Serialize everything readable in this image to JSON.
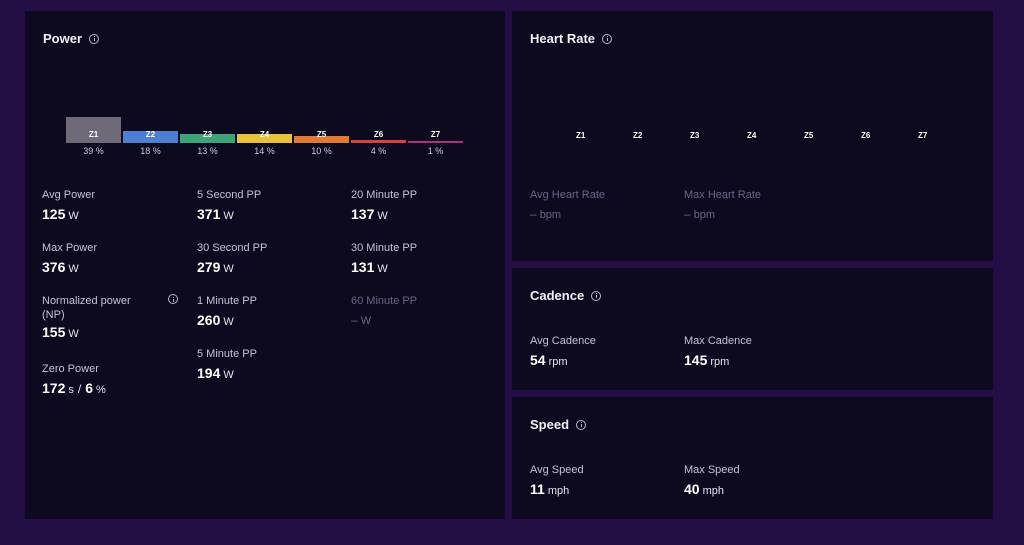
{
  "power": {
    "title": "Power",
    "zones": [
      {
        "label": "Z1",
        "pct": "39 %",
        "value": 39,
        "color": "#6e6a78"
      },
      {
        "label": "Z2",
        "pct": "18 %",
        "value": 18,
        "color": "#4d7fd1"
      },
      {
        "label": "Z3",
        "pct": "13 %",
        "value": 13,
        "color": "#3fa37a"
      },
      {
        "label": "Z4",
        "pct": "14 %",
        "value": 14,
        "color": "#e8c33a"
      },
      {
        "label": "Z5",
        "pct": "10 %",
        "value": 10,
        "color": "#e07a35"
      },
      {
        "label": "Z6",
        "pct": "4 %",
        "value": 4,
        "color": "#d9433f"
      },
      {
        "label": "Z7",
        "pct": "1 %",
        "value": 1,
        "color": "#b0307a"
      }
    ],
    "avg": {
      "label": "Avg Power",
      "value": "125",
      "unit": "W"
    },
    "max": {
      "label": "Max Power",
      "value": "376",
      "unit": "W"
    },
    "np": {
      "label_line1": "Normalized power",
      "label_line2": "(NP)",
      "value": "155",
      "unit": "W"
    },
    "zero": {
      "label": "Zero Power",
      "value1": "172",
      "unit1": "s",
      "sep": "/",
      "value2": "6",
      "unit2": "%"
    },
    "pp5s": {
      "label": "5 Second PP",
      "value": "371",
      "unit": "W"
    },
    "pp30s": {
      "label": "30 Second PP",
      "value": "279",
      "unit": "W"
    },
    "pp1m": {
      "label": "1 Minute PP",
      "value": "260",
      "unit": "W"
    },
    "pp5m": {
      "label": "5 Minute PP",
      "value": "194",
      "unit": "W"
    },
    "pp20m": {
      "label": "20 Minute PP",
      "value": "137",
      "unit": "W"
    },
    "pp30m": {
      "label": "30 Minute PP",
      "value": "131",
      "unit": "W"
    },
    "pp60m": {
      "label": "60 Minute PP",
      "value": "–",
      "unit": "W"
    }
  },
  "heart_rate": {
    "title": "Heart Rate",
    "zones": [
      "Z1",
      "Z2",
      "Z3",
      "Z4",
      "Z5",
      "Z6",
      "Z7"
    ],
    "avg": {
      "label": "Avg Heart Rate",
      "value": "–",
      "unit": "bpm"
    },
    "max": {
      "label": "Max Heart Rate",
      "value": "–",
      "unit": "bpm"
    }
  },
  "cadence": {
    "title": "Cadence",
    "avg": {
      "label": "Avg Cadence",
      "value": "54",
      "unit": "rpm"
    },
    "max": {
      "label": "Max Cadence",
      "value": "145",
      "unit": "rpm"
    }
  },
  "speed": {
    "title": "Speed",
    "avg": {
      "label": "Avg Speed",
      "value": "11",
      "unit": "mph"
    },
    "max": {
      "label": "Max Speed",
      "value": "40",
      "unit": "mph"
    }
  }
}
